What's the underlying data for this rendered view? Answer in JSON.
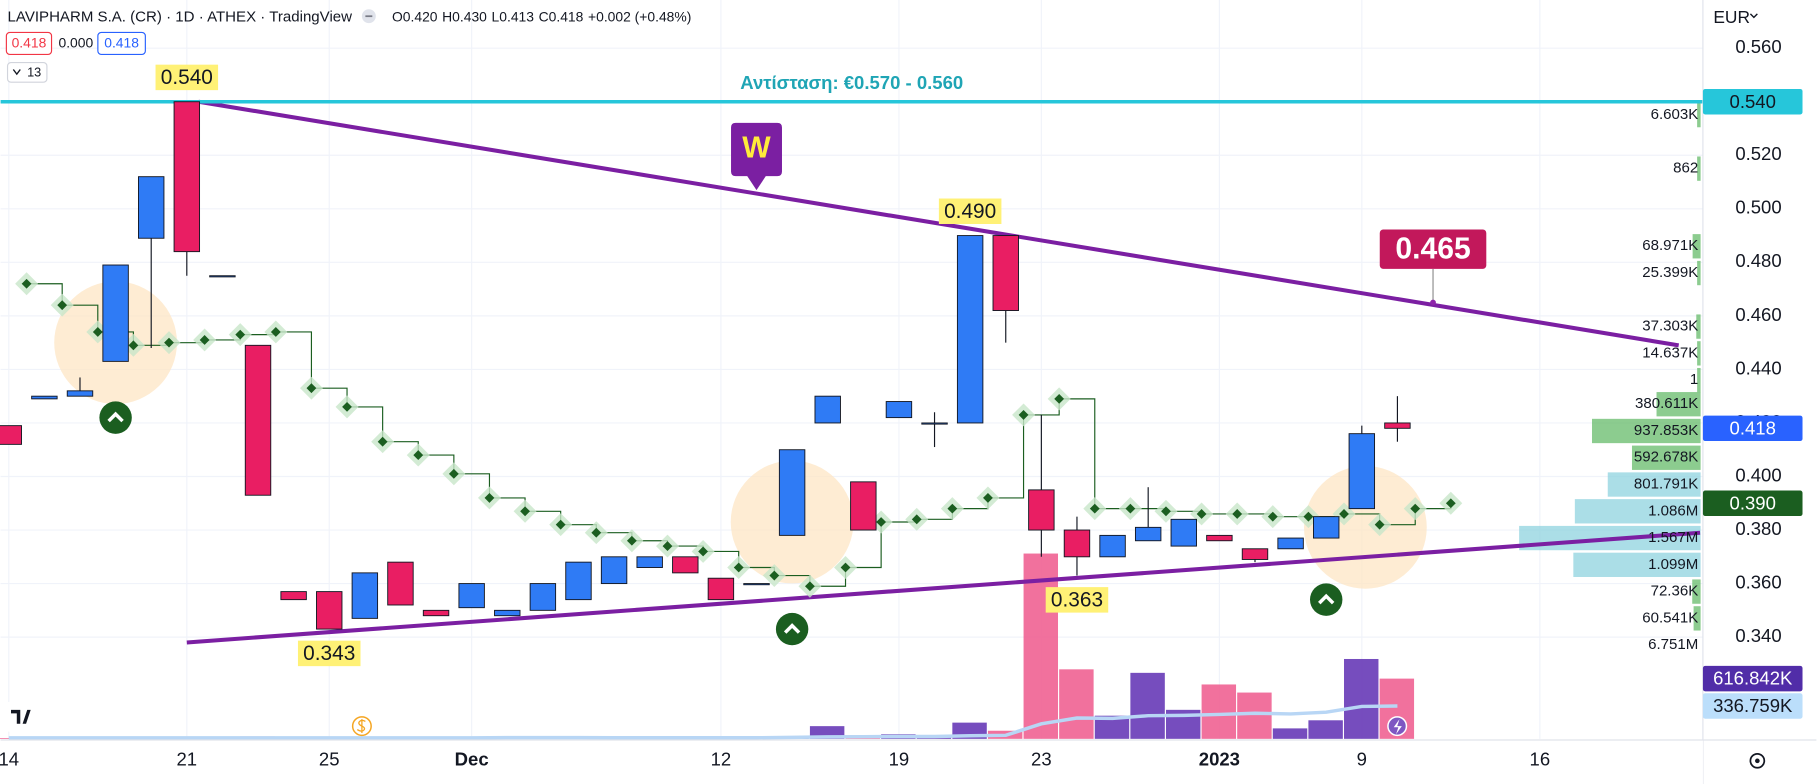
{
  "chart_data": {
    "type": "candlestick",
    "title": "LAVIPHARM S.A. (CR) · 1D · ATHEX · TradingView",
    "legend_ohlc": [
      "O0.420",
      "H0.430",
      "L0.413",
      "C0.418",
      "+0.002 (+0.48%)"
    ],
    "inputs": [
      "0.418",
      "0.000",
      "0.418"
    ],
    "collapse_label": "13",
    "currency": "EUR",
    "open": [
      0.419,
      0.429,
      0.43,
      0.443,
      0.489,
      0.54,
      0.475,
      0.449,
      0.357,
      0.357,
      0.347,
      0.368,
      0.35,
      0.351,
      0.348,
      0.35,
      0.354,
      0.36,
      0.366,
      0.37,
      0.362,
      0.36,
      0.378,
      0.42,
      0.398,
      0.422,
      0.42,
      0.42,
      0.49,
      0.395,
      0.38,
      0.37,
      0.376,
      0.374,
      0.378,
      0.373,
      0.373,
      0.377,
      0.388,
      0.42
    ],
    "high": [
      0.419,
      0.43,
      0.437,
      0.479,
      0.512,
      0.54,
      0.475,
      0.449,
      0.357,
      0.357,
      0.364,
      0.368,
      0.35,
      0.36,
      0.35,
      0.36,
      0.368,
      0.37,
      0.37,
      0.37,
      0.362,
      0.36,
      0.41,
      0.43,
      0.398,
      0.428,
      0.424,
      0.49,
      0.49,
      0.423,
      0.385,
      0.378,
      0.396,
      0.384,
      0.378,
      0.373,
      0.377,
      0.385,
      0.419,
      0.43
    ],
    "low": [
      0.412,
      0.429,
      0.43,
      0.443,
      0.448,
      0.475,
      0.475,
      0.393,
      0.354,
      0.343,
      0.347,
      0.352,
      0.348,
      0.351,
      0.348,
      0.35,
      0.354,
      0.36,
      0.366,
      0.364,
      0.354,
      0.36,
      0.378,
      0.42,
      0.38,
      0.422,
      0.411,
      0.42,
      0.45,
      0.37,
      0.363,
      0.37,
      0.376,
      0.374,
      0.376,
      0.368,
      0.373,
      0.377,
      0.388,
      0.413
    ],
    "close": [
      0.412,
      0.43,
      0.432,
      0.479,
      0.512,
      0.484,
      0.475,
      0.393,
      0.354,
      0.343,
      0.364,
      0.352,
      0.348,
      0.36,
      0.35,
      0.36,
      0.368,
      0.37,
      0.37,
      0.364,
      0.354,
      0.36,
      0.41,
      0.43,
      0.38,
      0.428,
      0.42,
      0.49,
      0.462,
      0.38,
      0.37,
      0.378,
      0.381,
      0.384,
      0.376,
      0.369,
      0.377,
      0.385,
      0.416,
      0.418
    ],
    "up_color": "#2f7bf5",
    "down_color": "#e91e63",
    "volume": {
      "values": [
        8000,
        5000,
        12000,
        20000,
        15000,
        18000,
        3000,
        25000,
        6000,
        14000,
        10000,
        9000,
        4000,
        11000,
        3000,
        8000,
        12000,
        10000,
        6000,
        9000,
        14000,
        4000,
        24000,
        130000,
        36000,
        47000,
        24000,
        166000,
        83000,
        1898000,
        712000,
        237000,
        676000,
        297000,
        557000,
        474000,
        107000,
        190000,
        818000,
        616842
      ],
      "up_color": "#673ab7",
      "down_color": "#f06292",
      "last_label": "616.842K",
      "ma": [
        10000,
        10000,
        10000,
        10000,
        10000,
        10000,
        10000,
        10000,
        10000,
        10000,
        10000,
        10000,
        10000,
        10000,
        12000,
        12000,
        12000,
        11000,
        11000,
        11000,
        11000,
        11000,
        15000,
        20000,
        22000,
        24000,
        24000,
        32000,
        36000,
        154000,
        213000,
        210000,
        237000,
        240000,
        250000,
        262000,
        255000,
        273000,
        332000,
        336759
      ],
      "ma_color": "#b8d6f5",
      "ma_last_label": "336.759K"
    },
    "indicator": {
      "x": [
        0.5,
        1.5,
        2.5,
        3.5,
        4.5,
        5.5,
        6.5,
        7.5,
        8.5,
        9.5,
        10.5,
        11.5,
        12.5,
        13.5,
        14.5,
        15.5,
        16.5,
        17.5,
        18.5,
        19.5,
        20.5,
        21.5,
        22.5,
        23.5,
        24.5,
        25.5,
        26.5,
        27.5,
        28.5,
        29.5,
        30.5,
        31.5,
        32.5,
        33.5,
        34.5,
        35.5,
        36.5,
        37.5,
        38.5,
        39.5,
        40.5
      ],
      "values": [
        0.472,
        0.464,
        0.454,
        0.449,
        0.45,
        0.451,
        0.453,
        0.454,
        0.433,
        0.426,
        0.413,
        0.408,
        0.401,
        0.392,
        0.387,
        0.382,
        0.379,
        0.376,
        0.374,
        0.372,
        0.366,
        0.363,
        0.359,
        0.366,
        0.383,
        0.384,
        0.388,
        0.392,
        0.423,
        0.429,
        0.388,
        0.388,
        0.387,
        0.386,
        0.386,
        0.385,
        0.385,
        0.386,
        0.382,
        0.388,
        0.39
      ],
      "color": "#1b5e20",
      "last_label": "0.390"
    },
    "xlim": [
      -0.23,
      47.58
    ],
    "xticks": [
      {
        "value": 0,
        "label": "14"
      },
      {
        "value": 5,
        "label": "21"
      },
      {
        "value": 9,
        "label": "25"
      },
      {
        "value": 13,
        "label": "Dec"
      },
      {
        "value": 20,
        "label": "12"
      },
      {
        "value": 25,
        "label": "19"
      },
      {
        "value": 29,
        "label": "23"
      },
      {
        "value": 34,
        "label": "2023"
      },
      {
        "value": 38,
        "label": "9"
      },
      {
        "value": 43,
        "label": "16"
      }
    ],
    "ylim": [
      0.302,
      0.578
    ],
    "yticks": [
      {
        "value": 0.34,
        "label": "0.340"
      },
      {
        "value": 0.36,
        "label": "0.360"
      },
      {
        "value": 0.38,
        "label": "0.380"
      },
      {
        "value": 0.4,
        "label": "0.400"
      },
      {
        "value": 0.42,
        "label": "0.420"
      },
      {
        "value": 0.44,
        "label": "0.440"
      },
      {
        "value": 0.46,
        "label": "0.460"
      },
      {
        "value": 0.48,
        "label": "0.480"
      },
      {
        "value": 0.5,
        "label": "0.500"
      },
      {
        "value": 0.52,
        "label": "0.520"
      },
      {
        "value": 0.54,
        "label": "0.540"
      },
      {
        "value": 0.56,
        "label": "0.560"
      }
    ],
    "grid": true,
    "last_price": {
      "value": 0.418,
      "label": "0.418"
    },
    "hline": {
      "value": 0.54,
      "label": "0.540",
      "text": "Αντίσταση: €0.570 - 0.560",
      "color": "#26c6da"
    },
    "trendlines": [
      {
        "x": [
          5.33,
          46.9
        ],
        "y": [
          0.54,
          0.449
        ],
        "color": "#7b1fa2"
      },
      {
        "x": [
          5,
          47.5
        ],
        "y": [
          0.338,
          0.379
        ],
        "color": "#7b1fa2"
      }
    ],
    "price_labels": [
      {
        "x": 5,
        "value": 0.54,
        "label": "0.540",
        "position": "above"
      },
      {
        "x": 27,
        "value": 0.49,
        "label": "0.490",
        "position": "above"
      },
      {
        "x": 9,
        "value": 0.343,
        "label": "0.343",
        "position": "below"
      },
      {
        "x": 30,
        "value": 0.363,
        "label": "0.363",
        "position": "below"
      }
    ],
    "callout": {
      "x": 40,
      "value": 0.465,
      "label": "0.465"
    },
    "marker": {
      "x": 21,
      "value": 0.507,
      "label": "W"
    },
    "highlights": [
      {
        "x": 3,
        "value": 0.45
      },
      {
        "x": 22,
        "value": 0.383
      },
      {
        "x": 38.1,
        "value": 0.381
      }
    ],
    "signals": [
      {
        "x": 3,
        "value": 0.422
      },
      {
        "x": 22,
        "value": 0.343
      },
      {
        "x": 37,
        "value": 0.354
      }
    ],
    "volume_profile": {
      "prices": [
        0.535,
        0.515,
        0.486,
        0.476,
        0.456,
        0.446,
        0.436,
        0.427,
        0.417,
        0.407,
        0.397,
        0.387,
        0.377,
        0.367,
        0.357,
        0.347
      ],
      "values": [
        6603,
        862,
        68971,
        25399,
        37303,
        14637,
        1,
        380611,
        937853,
        592678,
        801791,
        1086000,
        1567000,
        1099000,
        72360,
        60541
      ],
      "value_labels": [
        "6.603K",
        "862",
        "68.971K",
        "25.399K",
        "37.303K",
        "14.637K",
        "1",
        "380.611K",
        "937.853K",
        "592.678K",
        "801.791K",
        "1.086M",
        "1.567M",
        "1.099M",
        "72.36K",
        "60.541K"
      ],
      "colors": [
        "#66bb6a",
        "#66bb6a",
        "#66bb6a",
        "#66bb6a",
        "#66bb6a",
        "#66bb6a",
        "#66bb6a",
        "#66bb6a",
        "#66bb6a",
        "#66bb6a",
        "#8fd3df",
        "#8fd3df",
        "#8fd3df",
        "#8fd3df",
        "#66bb6a",
        "#66bb6a"
      ],
      "total": {
        "value": 6751000,
        "label": "6.751M",
        "price": 0.337
      }
    }
  }
}
